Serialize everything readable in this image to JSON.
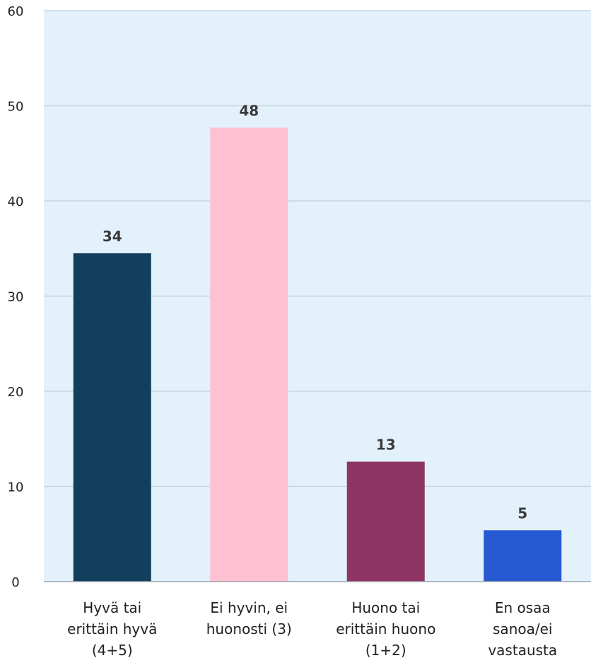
{
  "chart_data": {
    "type": "bar",
    "title": "",
    "xlabel": "",
    "ylabel": "",
    "ylim": [
      0,
      60
    ],
    "yticks": [
      0,
      10,
      20,
      30,
      40,
      50,
      60
    ],
    "grid": true,
    "legend": "none",
    "categories": [
      [
        "Hyvä tai",
        "erittäin hyvä",
        "(4+5)"
      ],
      [
        "Ei hyvin, ei",
        "huonosti (3)"
      ],
      [
        "Huono tai",
        "erittäin huono",
        "(1+2)"
      ],
      [
        "En osaa",
        "sanoa/ei",
        "vastausta"
      ]
    ],
    "values": [
      34.5,
      47.7,
      12.6,
      5.4
    ],
    "data_labels": [
      "34",
      "48",
      "13",
      "5"
    ],
    "colors": [
      "#133f5e",
      "#ffc0d2",
      "#8f3566",
      "#2659d1"
    ],
    "plot_background": "#e3f1fb",
    "grid_color": "#c9d6e0"
  }
}
